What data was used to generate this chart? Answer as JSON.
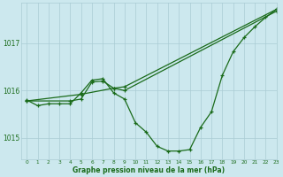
{
  "xlabel": "Graphe pression niveau de la mer (hPa)",
  "xlim": [
    -0.5,
    23
  ],
  "ylim": [
    1014.55,
    1017.85
  ],
  "yticks": [
    1015,
    1016,
    1017
  ],
  "xticks": [
    0,
    1,
    2,
    3,
    4,
    5,
    6,
    7,
    8,
    9,
    10,
    11,
    12,
    13,
    14,
    15,
    16,
    17,
    18,
    19,
    20,
    21,
    22,
    23
  ],
  "bg_color": "#cce8ee",
  "grid_color": "#aaccd4",
  "line_color": "#1a6b1a",
  "line1": {
    "x": [
      0,
      1,
      2,
      3,
      4,
      5,
      6,
      7,
      8,
      9,
      10,
      11,
      12,
      13,
      14,
      15,
      16,
      17,
      18,
      19,
      20,
      21,
      22,
      23
    ],
    "y": [
      1015.8,
      1015.68,
      1015.72,
      1015.72,
      1015.72,
      1015.95,
      1016.22,
      1016.25,
      1015.95,
      1015.82,
      1015.32,
      1015.12,
      1014.82,
      1014.72,
      1014.72,
      1014.75,
      1015.22,
      1015.55,
      1016.32,
      1016.82,
      1017.12,
      1017.35,
      1017.55,
      1017.72
    ]
  },
  "line2": {
    "x": [
      0,
      5,
      8,
      9,
      23
    ],
    "y": [
      1015.78,
      1015.92,
      1016.05,
      1016.08,
      1017.72
    ]
  },
  "line3": {
    "x": [
      0,
      4,
      5,
      6,
      7,
      8,
      9,
      23
    ],
    "y": [
      1015.78,
      1015.78,
      1015.82,
      1016.18,
      1016.2,
      1016.05,
      1016.0,
      1017.68
    ]
  }
}
